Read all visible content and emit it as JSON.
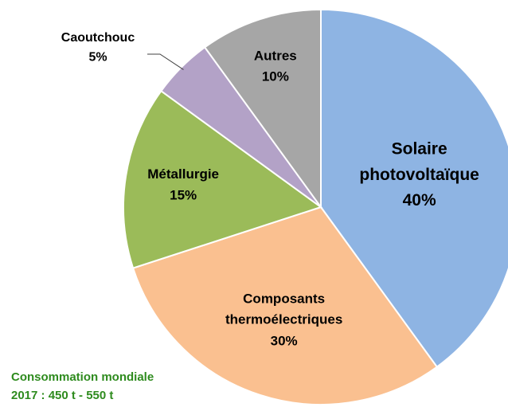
{
  "chart_data": {
    "type": "pie",
    "categories": [
      "Solaire photovoltaïque",
      "Composants thermoélectriques",
      "Métallurgie",
      "Caoutchouc",
      "Autres"
    ],
    "values": [
      40,
      30,
      15,
      5,
      10
    ],
    "value_labels": [
      "40%",
      "30%",
      "15%",
      "5%",
      "10%"
    ],
    "colors": [
      "#8eb4e3",
      "#fac090",
      "#9bbb59",
      "#b3a2c7",
      "#a6a6a6"
    ],
    "annotation": [
      "Consommation mondiale",
      "2017 : 450 t - 550 t"
    ]
  }
}
